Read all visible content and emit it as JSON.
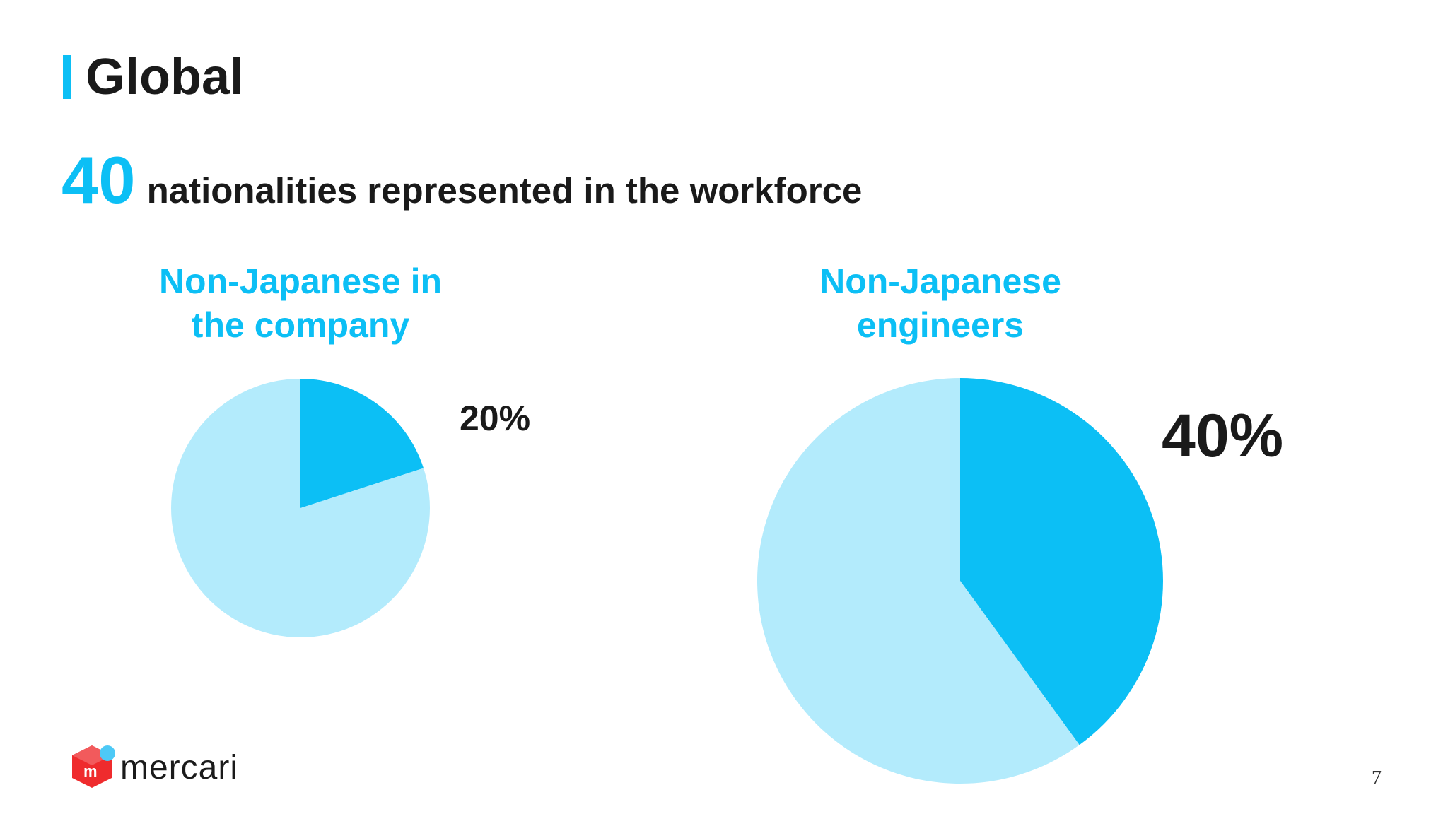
{
  "slide": {
    "title": "Global",
    "headline_number": "40",
    "headline_text": "nationalities represented in the workforce",
    "page_number": "7",
    "logo_text": "mercari"
  },
  "colors": {
    "accent": "#0cbff5",
    "light": "#b3ebfc",
    "text": "#1a1a1a",
    "logo_red": "#ef2b2d",
    "logo_blue": "#4dc9f6"
  },
  "icons": {
    "logo": "mercari-box-logo-icon"
  },
  "chart_data": [
    {
      "type": "pie",
      "title_lines": [
        "Non-Japanese in",
        "the company"
      ],
      "slices": [
        {
          "value": 20,
          "color": "#0cbff5"
        },
        {
          "value": 80,
          "color": "#b3ebfc"
        }
      ],
      "label": "20%"
    },
    {
      "type": "pie",
      "title_lines": [
        "Non-Japanese",
        "engineers"
      ],
      "slices": [
        {
          "value": 40,
          "color": "#0cbff5"
        },
        {
          "value": 60,
          "color": "#b3ebfc"
        }
      ],
      "label": "40%"
    }
  ]
}
